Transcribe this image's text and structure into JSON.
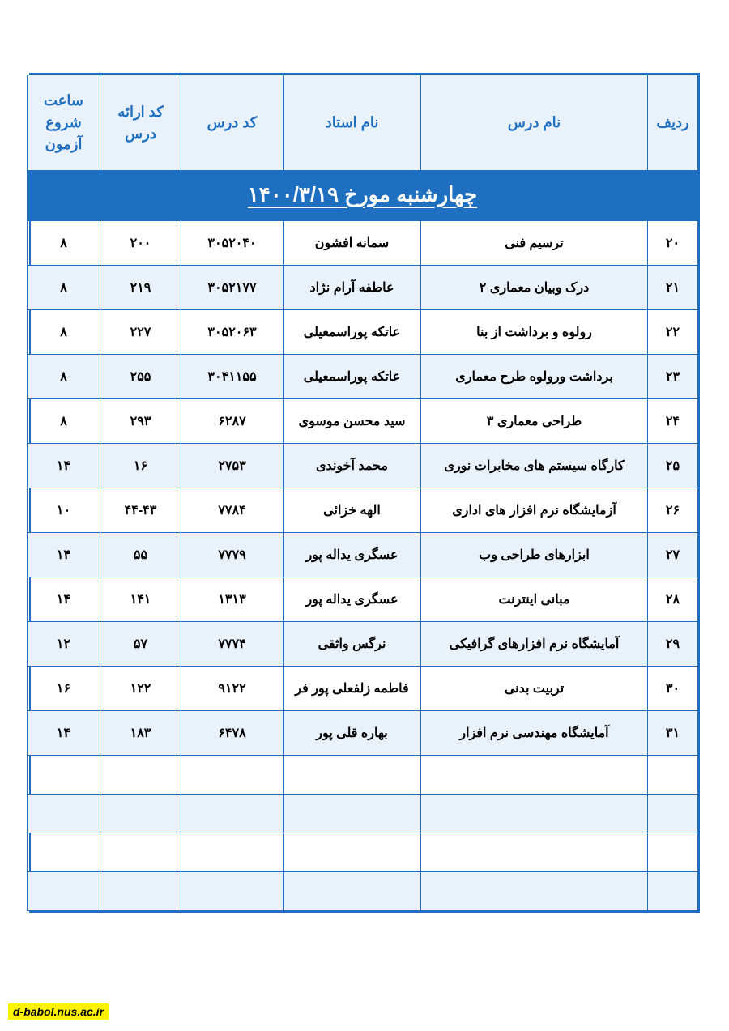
{
  "title": "چهارشنبه مورخ  ۱۴۰۰/۳/۱۹",
  "columns": {
    "row_no": "ردیف",
    "course_name": "نام درس",
    "professor": "نام استاد",
    "course_code": "کد درس",
    "offer_code": "کد ارائه درس",
    "exam_time": "ساعت شروع آزمون"
  },
  "rows": [
    {
      "row_no": "۲۰",
      "course_name": "ترسیم فنی",
      "professor": "سمانه افشون",
      "course_code": "۳۰۵۲۰۴۰",
      "offer_code": "۲۰۰",
      "exam_time": "۸"
    },
    {
      "row_no": "۲۱",
      "course_name": "درک وبیان معماری ۲",
      "professor": "عاطفه آرام نژاد",
      "course_code": "۳۰۵۲۱۷۷",
      "offer_code": "۲۱۹",
      "exam_time": "۸"
    },
    {
      "row_no": "۲۲",
      "course_name": "رولوه و برداشت از بنا",
      "professor": "عاتکه پوراسمعیلی",
      "course_code": "۳۰۵۲۰۶۳",
      "offer_code": "۲۲۷",
      "exam_time": "۸"
    },
    {
      "row_no": "۲۳",
      "course_name": "برداشت ورولوه طرح معماری",
      "professor": "عاتکه پوراسمعیلی",
      "course_code": "۳۰۴۱۱۵۵",
      "offer_code": "۲۵۵",
      "exam_time": "۸"
    },
    {
      "row_no": "۲۴",
      "course_name": "طراحی معماری ۳",
      "professor": "سید محسن موسوی",
      "course_code": "۶۲۸۷",
      "offer_code": "۲۹۳",
      "exam_time": "۸"
    },
    {
      "row_no": "۲۵",
      "course_name": "کارگاه سیستم های مخابرات نوری",
      "professor": "محمد آخوندی",
      "course_code": "۲۷۵۳",
      "offer_code": "۱۶",
      "exam_time": "۱۴"
    },
    {
      "row_no": "۲۶",
      "course_name": "آزمایشگاه نرم افزار های اداری",
      "professor": "الهه خزائی",
      "course_code": "۷۷۸۴",
      "offer_code": "۴۴-۴۳",
      "exam_time": "۱۰"
    },
    {
      "row_no": "۲۷",
      "course_name": "ابزارهای طراحی وب",
      "professor": "عسگری یداله پور",
      "course_code": "۷۷۷۹",
      "offer_code": "۵۵",
      "exam_time": "۱۴"
    },
    {
      "row_no": "۲۸",
      "course_name": "مبانی اینترنت",
      "professor": "عسگری یداله پور",
      "course_code": "۱۳۱۳",
      "offer_code": "۱۴۱",
      "exam_time": "۱۴"
    },
    {
      "row_no": "۲۹",
      "course_name": "آمایشگاه نرم افزارهای گرافیکی",
      "professor": "نرگس واثقی",
      "course_code": "۷۷۷۴",
      "offer_code": "۵۷",
      "exam_time": "۱۲"
    },
    {
      "row_no": "۳۰",
      "course_name": "تربیت بدنی",
      "professor": "فاطمه زلفعلی پور فر",
      "course_code": "۹۱۲۲",
      "offer_code": "۱۲۲",
      "exam_time": "۱۶"
    },
    {
      "row_no": "۳۱",
      "course_name": "آمایشگاه مهندسی نرم افزار",
      "professor": "بهاره قلی پور",
      "course_code": "۶۴۷۸",
      "offer_code": "۱۸۳",
      "exam_time": "۱۴"
    }
  ],
  "empty_rows": 4,
  "footer": "d-babol.nus.ac.ir",
  "style": {
    "header_bg": "#1f6fc0",
    "header_fg": "#ffffff",
    "thead_bg": "#e9f1fb",
    "thead_fg": "#1f6fc0",
    "border_color": "#1f6fc0",
    "alt_row_bg": "#e9f1fb",
    "footer_bg": "#fff200",
    "title_fontsize": 26,
    "thead_fontsize": 18,
    "cell_fontsize": 16
  }
}
